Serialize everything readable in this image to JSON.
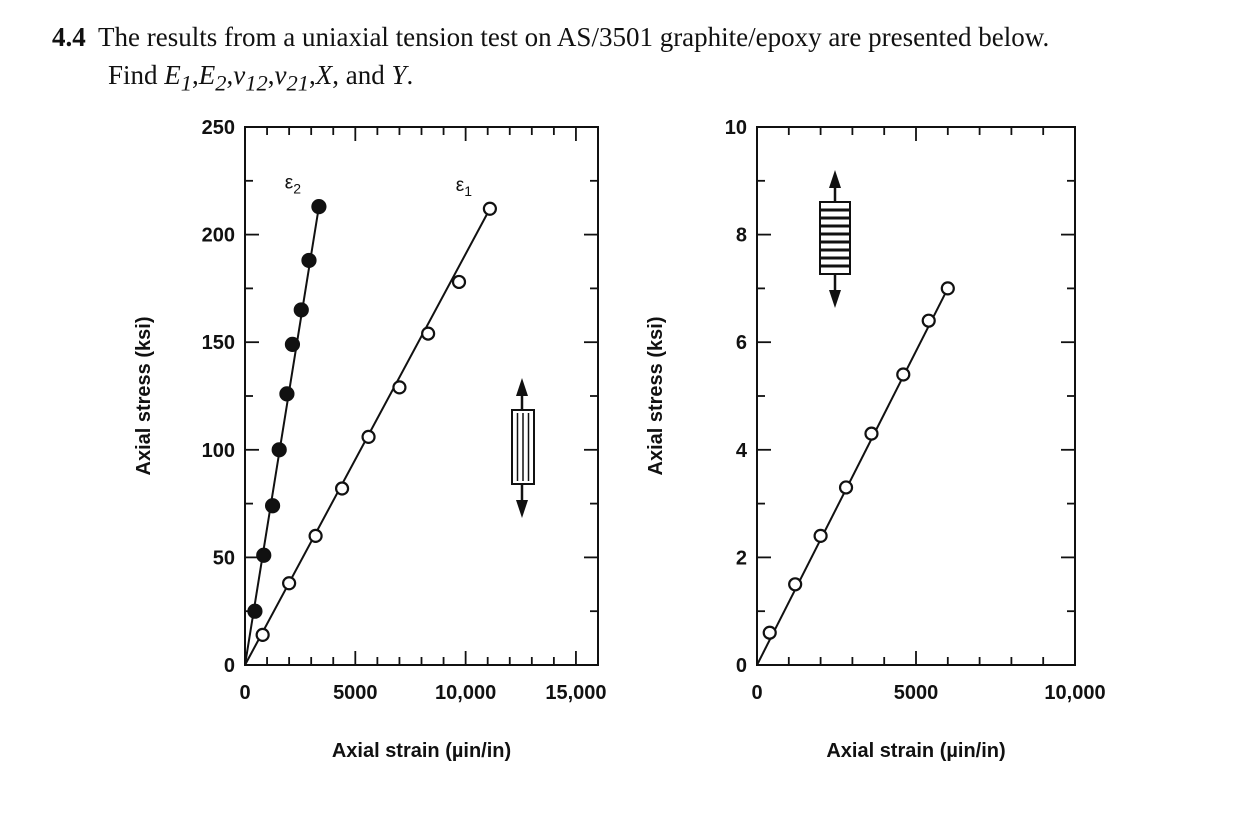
{
  "problem": {
    "number": "4.4",
    "line1": "The results from a uniaxial tension test on AS/3501 graphite/epoxy are presented below.",
    "find_label": "Find",
    "find_items": [
      "E1",
      "E2",
      "ν12",
      "ν21",
      "X",
      "Y"
    ],
    "find_suffix": "and"
  },
  "chart_data": [
    {
      "type": "scatter",
      "xlabel": "Axial strain (µin/in)",
      "ylabel": "Axial stress (ksi)",
      "xlim": [
        0,
        16000
      ],
      "ylim": [
        0,
        250
      ],
      "x_ticks": [
        0,
        5000,
        10000,
        15000
      ],
      "x_tick_labels": [
        "0",
        "5000",
        "10,000",
        "15,000"
      ],
      "y_ticks": [
        0,
        50,
        100,
        150,
        200,
        250
      ],
      "y_tick_labels": [
        "0",
        "50",
        "100",
        "150",
        "200",
        "250"
      ],
      "fibre_direction": "parallel to load",
      "series": [
        {
          "name": "ε1",
          "marker": "open-circle",
          "x": [
            800,
            2000,
            3200,
            4400,
            5600,
            7000,
            8300,
            9700,
            11100
          ],
          "y": [
            14,
            38,
            60,
            82,
            106,
            129,
            154,
            178,
            212
          ]
        },
        {
          "name": "ε2",
          "marker": "filled-circle",
          "x": [
            450,
            850,
            1250,
            1550,
            1900,
            2150,
            2550,
            2900,
            3350
          ],
          "y": [
            25,
            51,
            74,
            100,
            126,
            149,
            165,
            188,
            213
          ]
        }
      ]
    },
    {
      "type": "scatter",
      "xlabel": "Axial strain (µin/in)",
      "ylabel": "Axial stress (ksi)",
      "xlim": [
        0,
        10000
      ],
      "ylim": [
        0,
        10
      ],
      "x_ticks": [
        0,
        5000,
        10000
      ],
      "x_tick_labels": [
        "0",
        "5000",
        "10,000"
      ],
      "y_ticks": [
        0,
        2,
        4,
        6,
        8,
        10
      ],
      "y_tick_labels": [
        "0",
        "2",
        "4",
        "6",
        "8",
        "10"
      ],
      "fibre_direction": "perpendicular to load",
      "series": [
        {
          "name": "",
          "marker": "open-circle",
          "x": [
            400,
            1200,
            2000,
            2800,
            3600,
            4600,
            5400,
            6000
          ],
          "y": [
            0.6,
            1.5,
            2.4,
            3.3,
            4.3,
            5.4,
            6.4,
            7.0
          ]
        }
      ]
    }
  ]
}
